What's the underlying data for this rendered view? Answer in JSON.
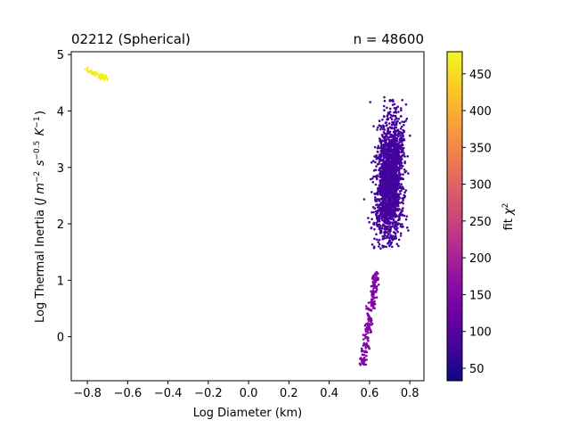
{
  "chart_data": {
    "type": "scatter",
    "title_left": "02212 (Spherical)",
    "title_right": "n = 48600",
    "xlabel": "Log Diameter (km)",
    "ylabel": "Log Thermal Inertia (J m^-2 s^-0.5 K^-1)",
    "xlim": [
      -0.88,
      0.87
    ],
    "ylim": [
      -0.78,
      5.05
    ],
    "xticks": [
      -0.8,
      -0.6,
      -0.4,
      -0.2,
      0.0,
      0.2,
      0.4,
      0.6,
      0.8
    ],
    "xtick_labels": [
      "−0.8",
      "−0.6",
      "−0.4",
      "−0.2",
      "0.0",
      "0.2",
      "0.4",
      "0.6",
      "0.8"
    ],
    "yticks": [
      0,
      1,
      2,
      3,
      4,
      5
    ],
    "ytick_labels": [
      "0",
      "1",
      "2",
      "3",
      "4",
      "5"
    ],
    "colorbar": {
      "label": "fit χ²",
      "colormap": "plasma",
      "range": [
        33,
        480
      ],
      "ticks": [
        50,
        100,
        150,
        200,
        250,
        300,
        350,
        400,
        450
      ],
      "tick_labels": [
        "50",
        "100",
        "150",
        "200",
        "250",
        "300",
        "350",
        "400",
        "450"
      ]
    },
    "clusters": [
      {
        "x_min": -0.83,
        "x_max": -0.7,
        "y_start": 4.77,
        "y_slope": -1.55,
        "y_spread": 0.03,
        "chi2": 470,
        "count": 60
      },
      {
        "x_min": 0.54,
        "x_max": 0.61,
        "y_start": -0.5,
        "y_slope": 23.0,
        "y_spread": 0.12,
        "chi2": 150,
        "count": 220
      },
      {
        "x_center": 0.7,
        "x_spread": 0.035,
        "y_center": 2.75,
        "y_spread": 0.55,
        "y_min": 1.56,
        "y_max": 4.3,
        "chi2": 70,
        "count": 2200
      }
    ]
  }
}
